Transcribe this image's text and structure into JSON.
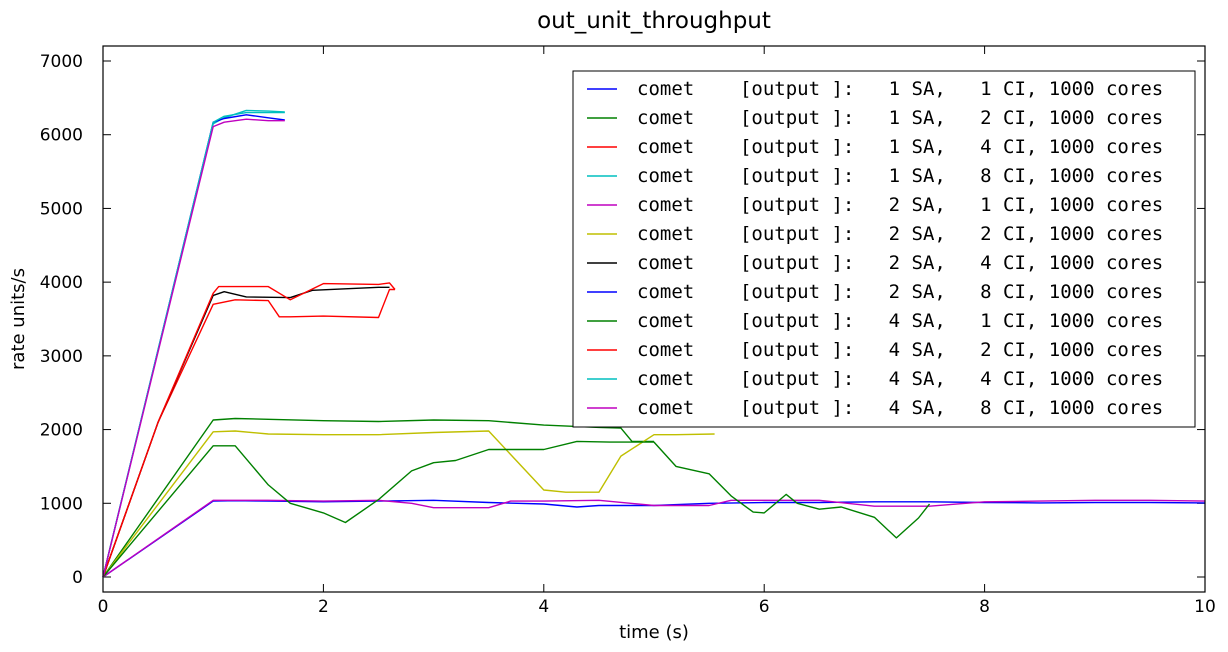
{
  "chart_data": {
    "type": "line",
    "title": "out_unit_throughput",
    "xlabel": "time (s)",
    "ylabel": "rate units/s",
    "xlim": [
      0,
      10
    ],
    "ylim": [
      0,
      7000
    ],
    "xticks": [
      0,
      2,
      4,
      6,
      8,
      10
    ],
    "yticks": [
      0,
      1000,
      2000,
      3000,
      4000,
      5000,
      6000,
      7000
    ],
    "legend_position": "top-right",
    "series": [
      {
        "name": "comet    [output ]:   1 SA,   1 CI, 1000 cores",
        "color": "#0000ff",
        "x": [
          0,
          1.0,
          1.2,
          1.5,
          2.0,
          2.5,
          3.0,
          3.5,
          4.0,
          4.3,
          4.5,
          5.0,
          5.5,
          6.0,
          6.5,
          7.0,
          7.5,
          8.0,
          8.5,
          9.0,
          9.5,
          10.0
        ],
        "y": [
          0,
          1030,
          1035,
          1030,
          1020,
          1030,
          1040,
          1010,
          990,
          950,
          970,
          970,
          1000,
          1010,
          1010,
          1020,
          1020,
          1010,
          1005,
          1010,
          1010,
          1005
        ]
      },
      {
        "name": "comet    [output ]:   1 SA,   2 CI, 1000 cores",
        "color": "#008000",
        "x": [
          0,
          1.0,
          1.2,
          1.5,
          2.0,
          2.5,
          3.0,
          3.5,
          4.0,
          4.5,
          4.7,
          4.8,
          5.0
        ],
        "y": [
          0,
          2130,
          2150,
          2140,
          2120,
          2110,
          2130,
          2120,
          2060,
          2030,
          2020,
          1840,
          1840
        ]
      },
      {
        "name": "comet    [output ]:   1 SA,   4 CI, 1000 cores",
        "color": "#ff0000",
        "x": [
          0,
          0.5,
          1.0,
          1.2,
          1.5,
          1.6,
          1.7,
          2.0,
          2.5,
          2.6,
          2.65
        ],
        "y": [
          0,
          2100,
          3700,
          3760,
          3750,
          3530,
          3530,
          3540,
          3520,
          3900,
          3900
        ]
      },
      {
        "name": "comet    [output ]:   1 SA,   8 CI, 1000 cores",
        "color": "#00bfbf",
        "x": [
          0,
          1.0,
          1.1,
          1.3,
          1.5,
          1.65
        ],
        "y": [
          0,
          6150,
          6230,
          6330,
          6320,
          6310
        ]
      },
      {
        "name": "comet    [output ]:   2 SA,   1 CI, 1000 cores",
        "color": "#bf00bf",
        "x": [
          0,
          1.0,
          1.5,
          2.0,
          2.5,
          2.8,
          3.0,
          3.5,
          3.7,
          4.0,
          4.5,
          5.0,
          5.5,
          5.7,
          6.0,
          6.5,
          7.0,
          7.5,
          8.0,
          8.5,
          9.0,
          9.5,
          10.0
        ],
        "y": [
          0,
          1040,
          1040,
          1030,
          1040,
          1000,
          940,
          940,
          1030,
          1030,
          1040,
          970,
          970,
          1040,
          1040,
          1040,
          960,
          960,
          1020,
          1030,
          1040,
          1040,
          1030
        ]
      },
      {
        "name": "comet    [output ]:   2 SA,   2 CI, 1000 cores",
        "color": "#bfbf00",
        "x": [
          0,
          1.0,
          1.2,
          1.5,
          2.0,
          2.5,
          3.0,
          3.5,
          4.0,
          4.2,
          4.5,
          4.7,
          5.0,
          5.2,
          5.55
        ],
        "y": [
          0,
          1970,
          1980,
          1940,
          1930,
          1930,
          1960,
          1980,
          1180,
          1150,
          1150,
          1640,
          1930,
          1930,
          1940
        ]
      },
      {
        "name": "comet    [output ]:   2 SA,   4 CI, 1000 cores",
        "color": "#000000",
        "x": [
          0,
          0.5,
          1.0,
          1.1,
          1.3,
          1.7,
          1.9,
          2.2,
          2.5,
          2.6
        ],
        "y": [
          0,
          2100,
          3820,
          3870,
          3800,
          3790,
          3890,
          3910,
          3930,
          3930
        ]
      },
      {
        "name": "comet    [output ]:   2 SA,   8 CI, 1000 cores",
        "color": "#0000ff",
        "x": [
          0,
          1.0,
          1.1,
          1.3,
          1.5,
          1.65
        ],
        "y": [
          0,
          6170,
          6220,
          6270,
          6230,
          6200
        ]
      },
      {
        "name": "comet    [output ]:   4 SA,   1 CI, 1000 cores",
        "color": "#008000",
        "x": [
          0,
          1.0,
          1.2,
          1.5,
          1.7,
          2.0,
          2.2,
          2.5,
          2.8,
          3.0,
          3.2,
          3.5,
          4.0,
          4.3,
          4.6,
          5.0,
          5.2,
          5.5,
          5.7,
          5.9,
          6.0,
          6.2,
          6.3,
          6.5,
          6.7,
          7.0,
          7.2,
          7.4,
          7.5
        ],
        "y": [
          0,
          1780,
          1780,
          1250,
          1000,
          870,
          740,
          1050,
          1440,
          1550,
          1580,
          1730,
          1730,
          1840,
          1830,
          1830,
          1500,
          1400,
          1100,
          880,
          870,
          1120,
          1000,
          920,
          950,
          810,
          530,
          800,
          990
        ]
      },
      {
        "name": "comet    [output ]:   4 SA,   2 CI, 1000 cores",
        "color": "#ff0000",
        "x": [
          0,
          0.5,
          1.0,
          1.05,
          1.3,
          1.5,
          1.7,
          2.0,
          2.5,
          2.6,
          2.65
        ],
        "y": [
          0,
          2100,
          3850,
          3940,
          3940,
          3940,
          3760,
          3980,
          3970,
          3990,
          3900
        ]
      },
      {
        "name": "comet    [output ]:   4 SA,   4 CI, 1000 cores",
        "color": "#00bfbf",
        "x": [
          0,
          1.0,
          1.1,
          1.3,
          1.5,
          1.65
        ],
        "y": [
          0,
          6170,
          6250,
          6300,
          6300,
          6300
        ]
      },
      {
        "name": "comet    [output ]:   4 SA,   8 CI, 1000 cores",
        "color": "#bf00bf",
        "x": [
          0,
          1.0,
          1.1,
          1.3,
          1.5,
          1.65
        ],
        "y": [
          0,
          6110,
          6170,
          6210,
          6190,
          6190
        ]
      }
    ]
  }
}
